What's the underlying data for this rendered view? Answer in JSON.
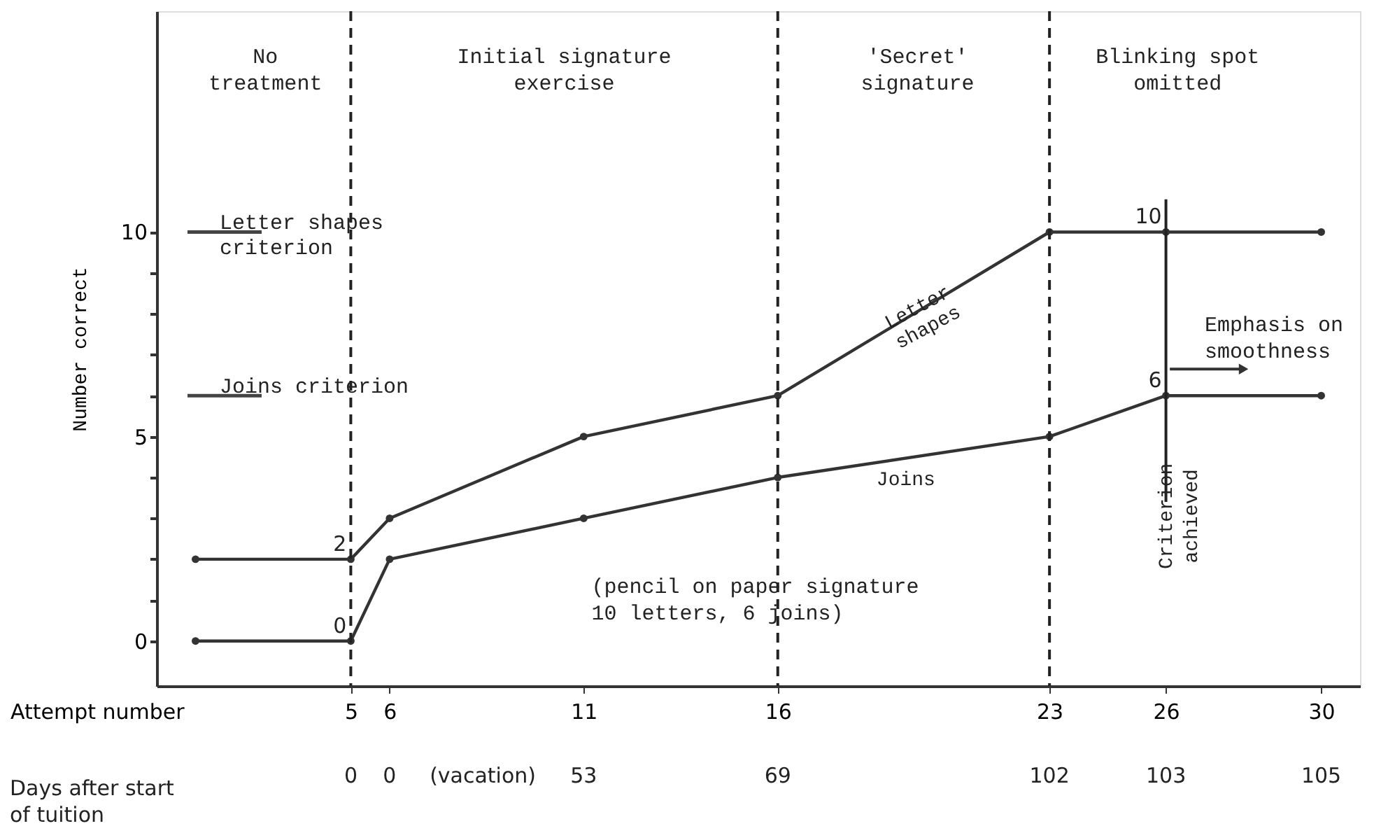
{
  "chart_data": {
    "type": "line",
    "xlabel": "Attempt number",
    "ylabel": "Number correct",
    "x": [
      1,
      5,
      6,
      11,
      16,
      23,
      26,
      30
    ],
    "series": [
      {
        "name": "Letter shapes",
        "color": "#333333",
        "values": [
          2,
          2,
          3,
          5,
          6,
          10,
          10,
          10
        ],
        "value_labels": [
          null,
          "2",
          null,
          null,
          null,
          null,
          "10",
          null
        ]
      },
      {
        "name": "Joins",
        "color": "#333333",
        "values": [
          0,
          0,
          2,
          3,
          4,
          5,
          6,
          6
        ],
        "value_labels": [
          null,
          "0",
          null,
          null,
          null,
          null,
          "6",
          null
        ]
      }
    ],
    "xlim": [
      0,
      31
    ],
    "xticks": [
      5,
      6,
      11,
      16,
      23,
      26,
      30
    ],
    "ylim": [
      -1.1,
      15.4
    ],
    "yticks": [
      0,
      {
        "value": 1,
        "label": null
      },
      {
        "value": 2,
        "label": null
      },
      {
        "value": 3,
        "label": null
      },
      {
        "value": 4,
        "label": null
      },
      5,
      {
        "value": 6,
        "label": null
      },
      {
        "value": 7,
        "label": null
      },
      {
        "value": 8,
        "label": null
      },
      {
        "value": 9,
        "label": null
      },
      10
    ],
    "ref_lines": [
      {
        "axis": "x",
        "value": 5,
        "line_style": "dashed"
      },
      {
        "axis": "x",
        "value": 16,
        "line_style": "dashed"
      },
      {
        "axis": "x",
        "value": 23,
        "line_style": "dashed"
      },
      {
        "axis": "x",
        "value": 26,
        "line_style": "solid",
        "label": "Criterion\nachieved"
      },
      {
        "axis": "y",
        "value": 10,
        "label": "Letter shapes\ncriterion"
      },
      {
        "axis": "y",
        "value": 6,
        "label": "Joins criterion"
      }
    ],
    "annotations": [
      "No\ntreatment",
      "Initial signature\nexercise",
      "'Secret'\nsignature",
      "Blinking spot\nomitted",
      "Emphasis on\nsmoothness",
      "(pencil on paper signature\n 10 letters, 6 joins)",
      "(vacation)",
      "Days after start\nof tuition",
      "0",
      "0",
      "53",
      "69",
      "102",
      "103",
      "105"
    ],
    "marker": "circle",
    "line_style": "solid",
    "grid": false
  }
}
